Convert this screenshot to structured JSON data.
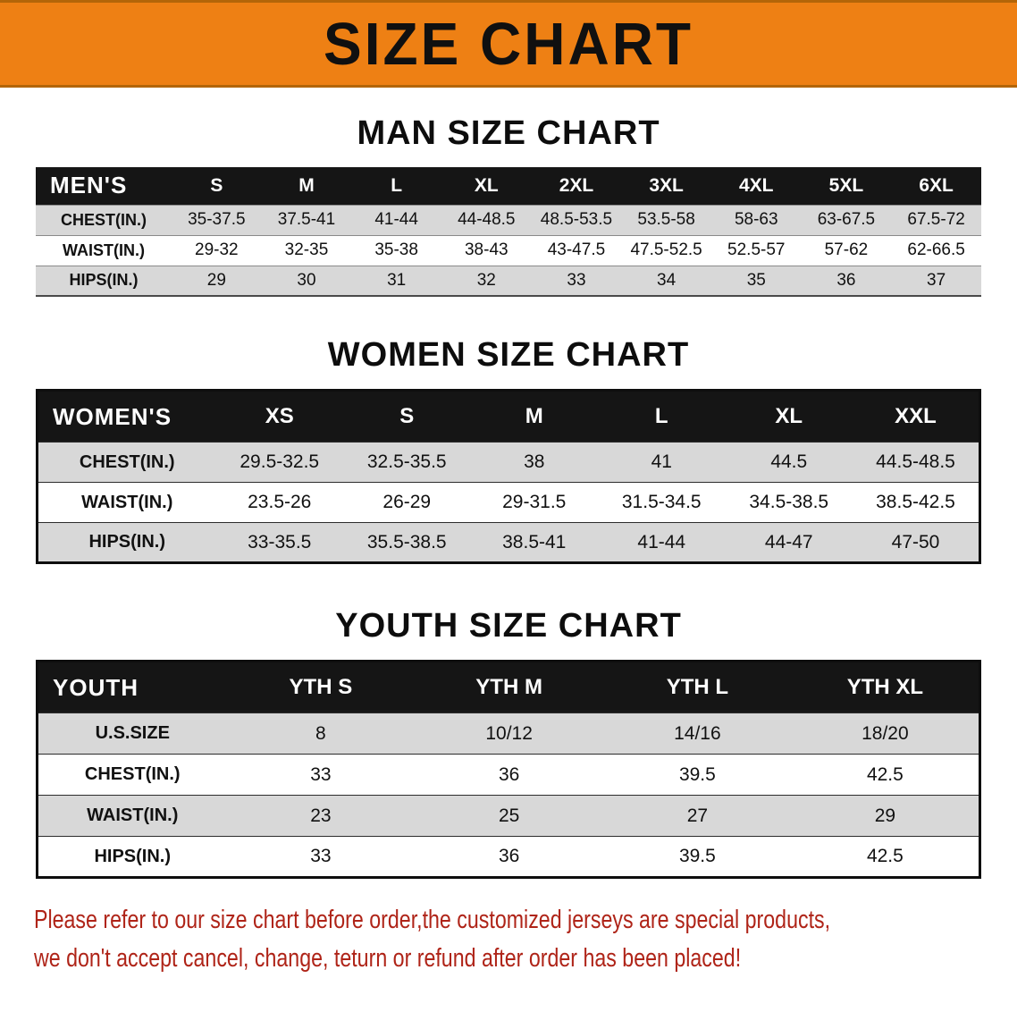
{
  "banner": {
    "title": "SIZE CHART"
  },
  "man_section": {
    "heading": "MAN SIZE CHART",
    "table": {
      "header": [
        "MEN'S",
        "S",
        "M",
        "L",
        "XL",
        "2XL",
        "3XL",
        "4XL",
        "5XL",
        "6XL"
      ],
      "rows": [
        [
          "CHEST(IN.)",
          "35-37.5",
          "37.5-41",
          "41-44",
          "44-48.5",
          "48.5-53.5",
          "53.5-58",
          "58-63",
          "63-67.5",
          "67.5-72"
        ],
        [
          "WAIST(IN.)",
          "29-32",
          "32-35",
          "35-38",
          "38-43",
          "43-47.5",
          "47.5-52.5",
          "52.5-57",
          "57-62",
          "62-66.5"
        ],
        [
          "HIPS(IN.)",
          "29",
          "30",
          "31",
          "32",
          "33",
          "34",
          "35",
          "36",
          "37"
        ]
      ]
    }
  },
  "women_section": {
    "heading": "WOMEN SIZE CHART",
    "table": {
      "header": [
        "WOMEN'S",
        "XS",
        "S",
        "M",
        "L",
        "XL",
        "XXL"
      ],
      "rows": [
        [
          "CHEST(IN.)",
          "29.5-32.5",
          "32.5-35.5",
          "38",
          "41",
          "44.5",
          "44.5-48.5"
        ],
        [
          "WAIST(IN.)",
          "23.5-26",
          "26-29",
          "29-31.5",
          "31.5-34.5",
          "34.5-38.5",
          "38.5-42.5"
        ],
        [
          "HIPS(IN.)",
          "33-35.5",
          "35.5-38.5",
          "38.5-41",
          "41-44",
          "44-47",
          "47-50"
        ]
      ]
    }
  },
  "youth_section": {
    "heading": "YOUTH SIZE CHART",
    "table": {
      "header": [
        "YOUTH",
        "YTH S",
        "YTH M",
        "YTH L",
        "YTH XL"
      ],
      "rows": [
        [
          "U.S.SIZE",
          "8",
          "10/12",
          "14/16",
          "18/20"
        ],
        [
          "CHEST(IN.)",
          "33",
          "36",
          "39.5",
          "42.5"
        ],
        [
          "WAIST(IN.)",
          "23",
          "25",
          "27",
          "29"
        ],
        [
          "HIPS(IN.)",
          "33",
          "36",
          "39.5",
          "42.5"
        ]
      ]
    }
  },
  "footer": {
    "line1": "Please refer to our size chart before order,the customized jerseys are special products,",
    "line2": "we don't accept cancel, change, teturn or refund after order has been placed!"
  },
  "colors": {
    "banner_orange": "#EE8014",
    "header_black": "#151515",
    "row_gray": "#D8D8D8",
    "footer_red": "#AF2418"
  }
}
